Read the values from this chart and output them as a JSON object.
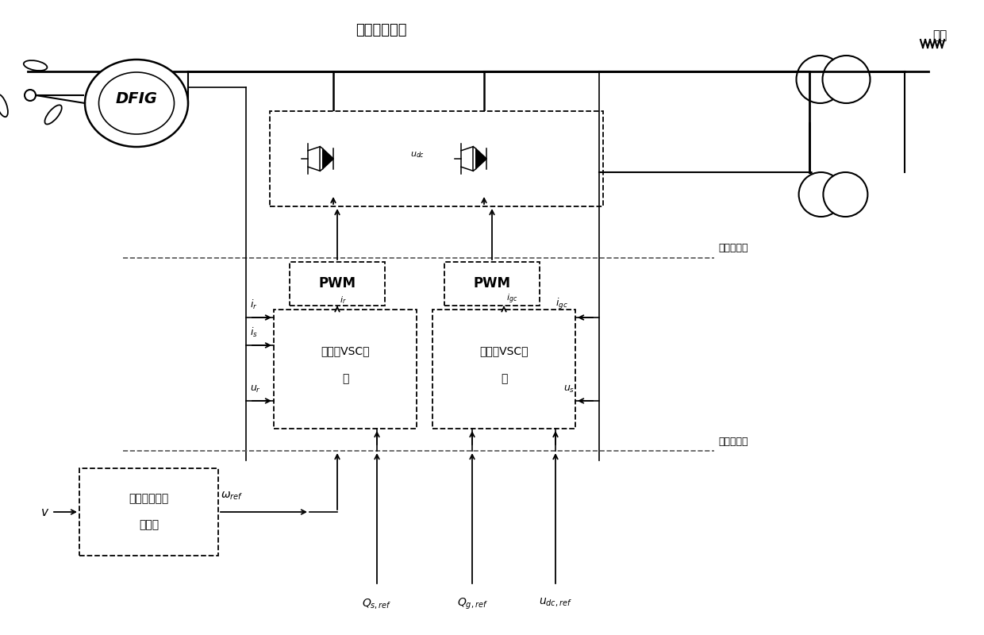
{
  "title": "双馈风电机组",
  "grid_label": "电网",
  "layer2_label": "第二层控制",
  "layer1_label": "第一层控制",
  "dfig_label": "DFIG",
  "pwm_label": "PWM",
  "rotor_vsc_line1": "转子侧VSC控",
  "rotor_vsc_line2": "制",
  "stator_vsc_line1": "定子侧VSC控",
  "stator_vsc_line2": "制",
  "wind_ctrl_line1": "最优风功率跟",
  "wind_ctrl_line2": "踪控制",
  "bg_color": "#ffffff",
  "line_color": "#000000",
  "dash_color": "#555555"
}
